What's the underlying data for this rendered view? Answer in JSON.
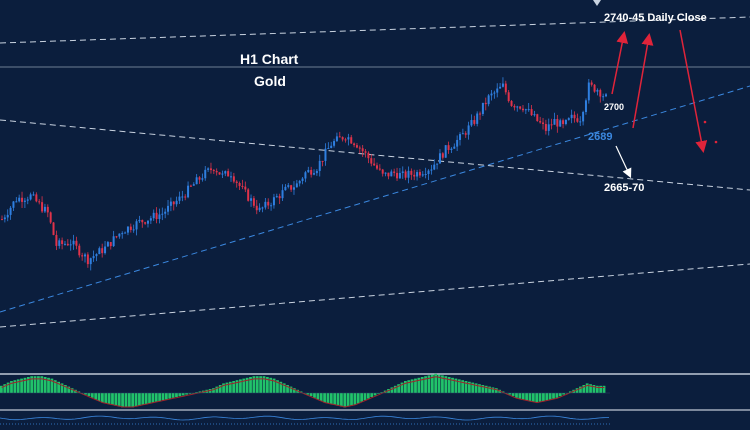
{
  "colors": {
    "background": "#0b1e3d",
    "candle_up": "#2f7fe0",
    "candle_down": "#e0334a",
    "trend_blue": "#3b88e0",
    "line_white": "#c9d3e0",
    "arrow_red": "#e0243a",
    "arrow_white": "#ffffff",
    "macd_green": "#21c26a",
    "macd_signal": "#a0232a",
    "panel_divider": "#bfc8d6"
  },
  "chart_data": {
    "type": "candlestick",
    "title": "H1 Chart",
    "subtitle": "Gold",
    "annotations": [
      {
        "text": "2740-45 Daily Close",
        "kind": "resistance_target"
      },
      {
        "text": "2700",
        "kind": "level"
      },
      {
        "text": "2689",
        "kind": "trendline_support"
      },
      {
        "text": "2665-70",
        "kind": "support_target"
      }
    ],
    "price_path": [
      [
        0,
        2668
      ],
      [
        5,
        2675
      ],
      [
        10,
        2676
      ],
      [
        16,
        2670
      ],
      [
        19,
        2659
      ],
      [
        24,
        2660
      ],
      [
        30,
        2654
      ],
      [
        36,
        2658
      ],
      [
        42,
        2664
      ],
      [
        48,
        2667
      ],
      [
        56,
        2670
      ],
      [
        62,
        2675
      ],
      [
        70,
        2683
      ],
      [
        74,
        2686
      ],
      [
        77,
        2683
      ],
      [
        80,
        2684
      ],
      [
        84,
        2678
      ],
      [
        90,
        2671
      ],
      [
        94,
        2674
      ],
      [
        99,
        2678
      ],
      [
        103,
        2680
      ],
      [
        106,
        2684
      ],
      [
        110,
        2686
      ],
      [
        115,
        2694
      ],
      [
        120,
        2697
      ],
      [
        124,
        2694
      ],
      [
        129,
        2688
      ],
      [
        133,
        2683
      ],
      [
        137,
        2684
      ],
      [
        140,
        2683
      ],
      [
        145,
        2684
      ],
      [
        150,
        2686
      ],
      [
        155,
        2692
      ],
      [
        160,
        2696
      ],
      [
        165,
        2702
      ],
      [
        170,
        2710
      ],
      [
        175,
        2714
      ],
      [
        178,
        2708
      ],
      [
        182,
        2707
      ],
      [
        186,
        2703
      ],
      [
        190,
        2699
      ],
      [
        193,
        2702
      ],
      [
        196,
        2700
      ],
      [
        199,
        2703
      ],
      [
        202,
        2703
      ],
      [
        205,
        2714
      ],
      [
        208,
        2713
      ],
      [
        211,
        2710
      ]
    ],
    "macd_histogram": [
      3,
      5,
      6,
      7,
      7,
      6,
      4,
      2,
      0,
      -2,
      -4,
      -5,
      -6,
      -6,
      -5,
      -4,
      -3,
      -2,
      -1,
      0,
      1,
      2,
      4,
      5,
      6,
      7,
      7,
      6,
      4,
      2,
      0,
      -2,
      -4,
      -5,
      -6,
      -5,
      -3,
      -1,
      1,
      3,
      5,
      6,
      7,
      8,
      7,
      6,
      5,
      4,
      3,
      2,
      0,
      -2,
      -3,
      -4,
      -3,
      -2,
      0,
      2,
      4,
      3
    ],
    "grid": false,
    "legend": "none"
  }
}
